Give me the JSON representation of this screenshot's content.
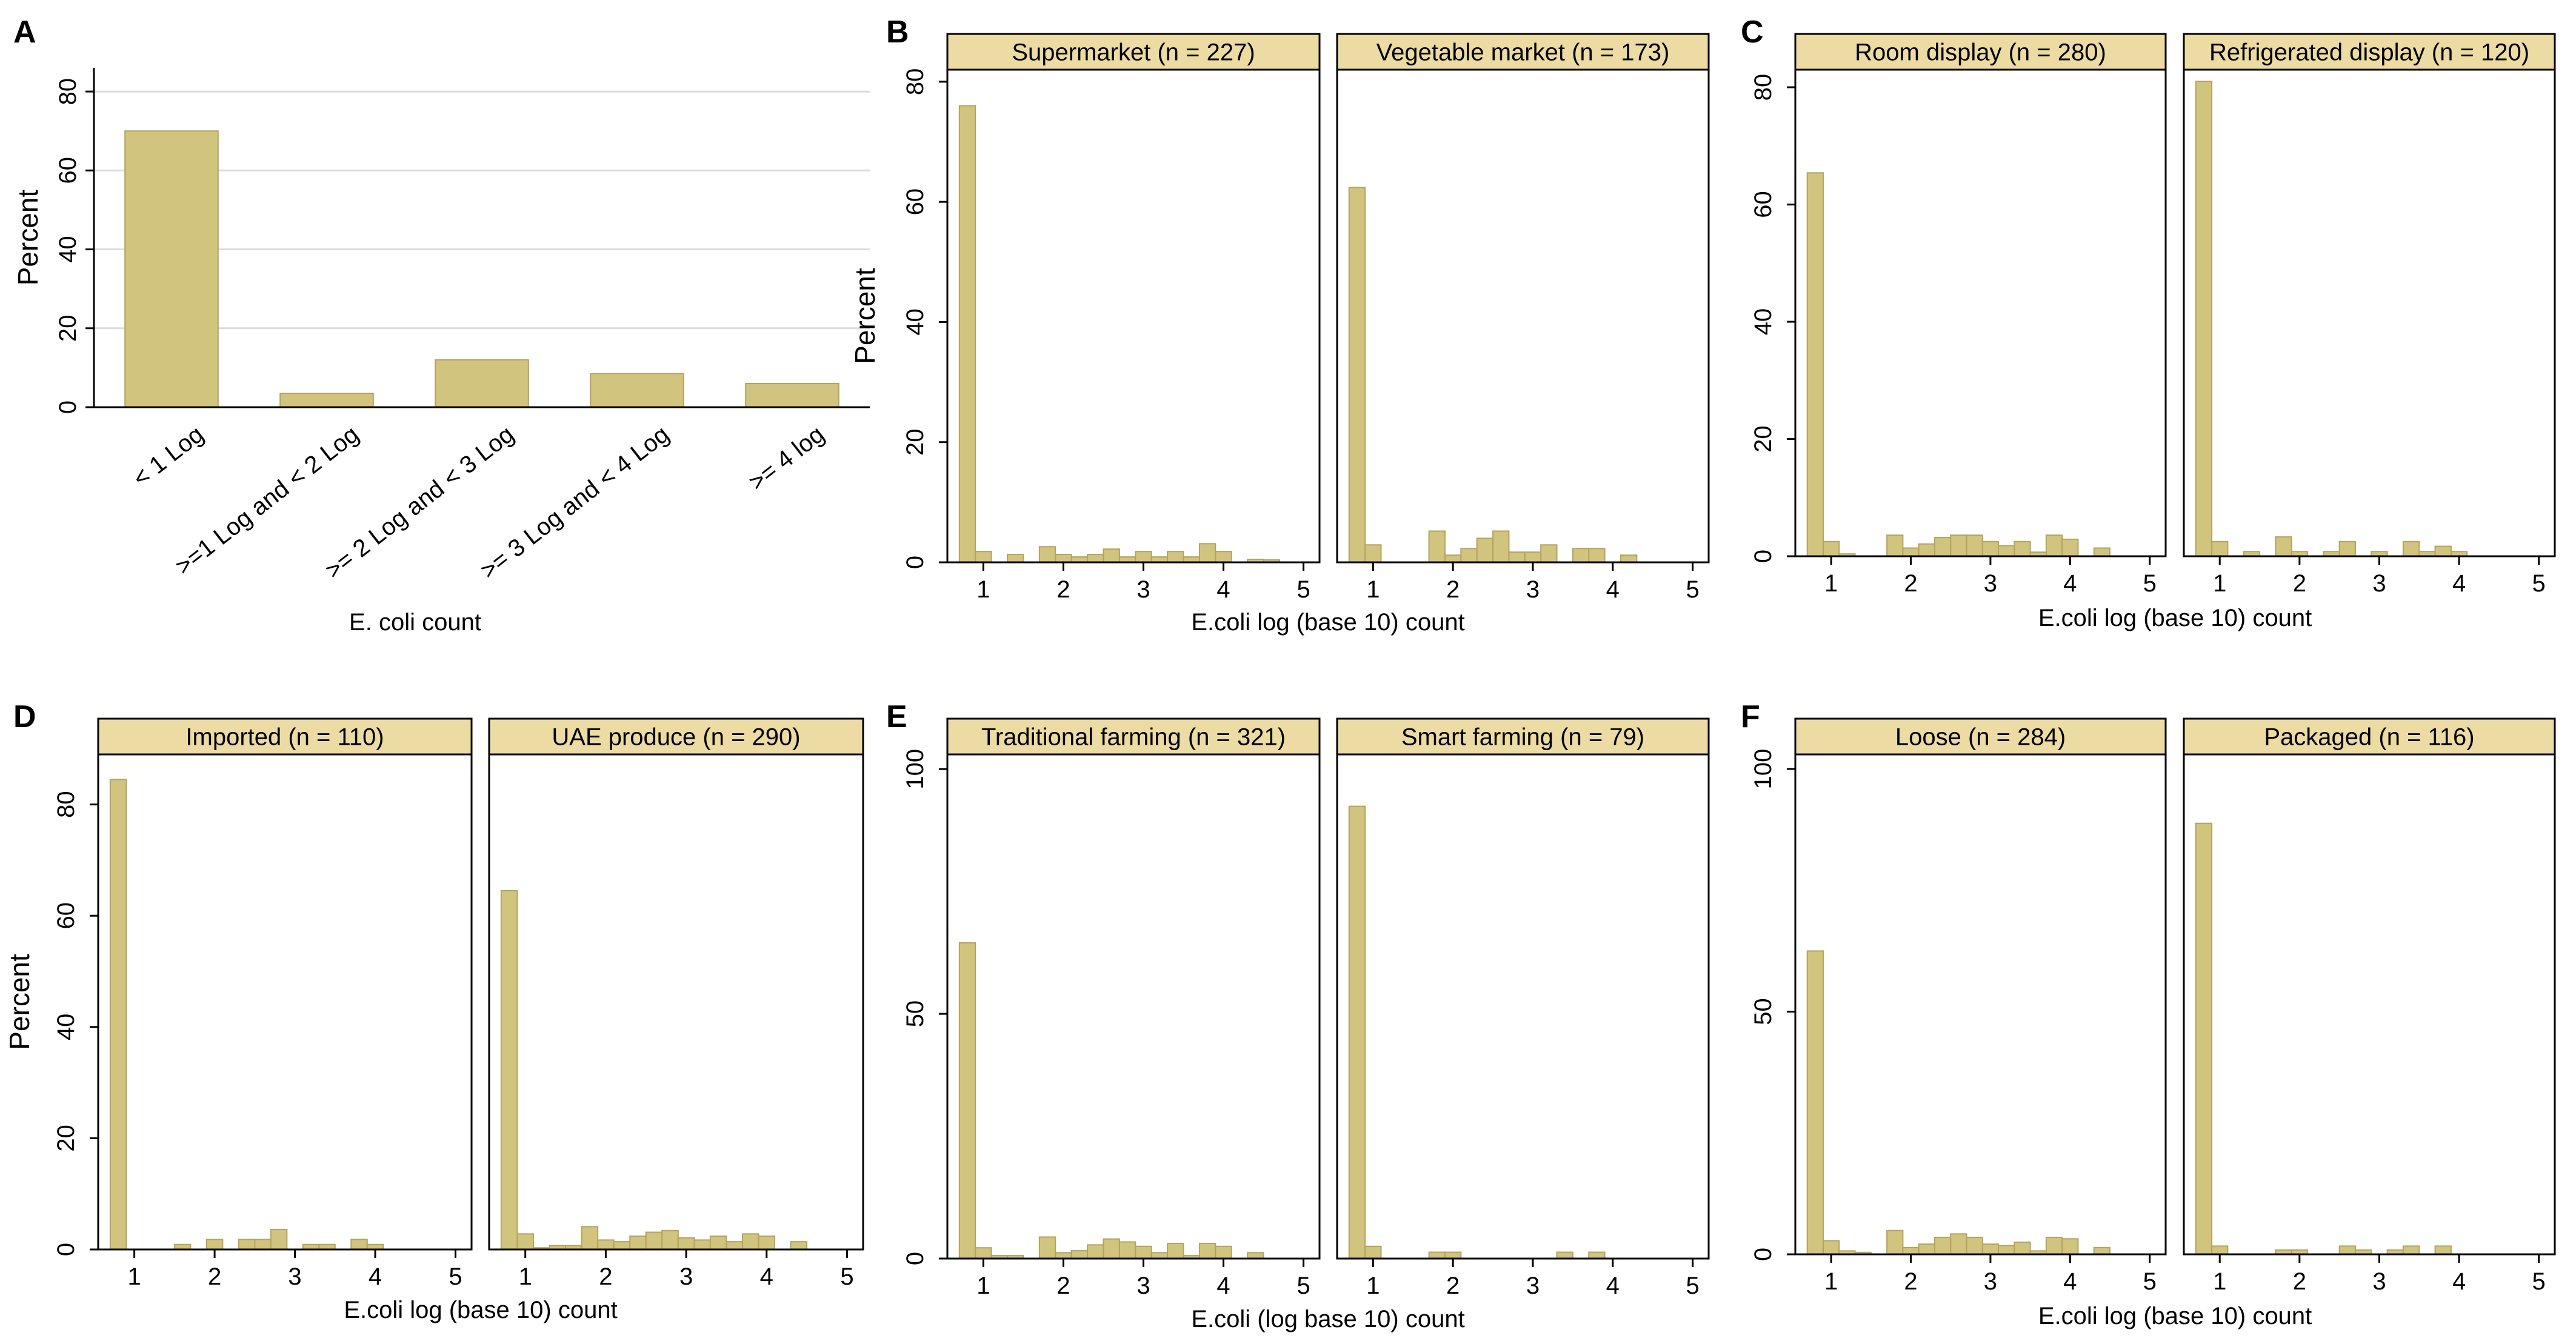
{
  "colors": {
    "bar": "#d1c47e",
    "bar_stroke": "#b4a35e",
    "strip": "#ecdba3",
    "grid": "#dcdcdc",
    "axis": "#000000"
  },
  "chart_data": [
    {
      "panel": "A",
      "type": "bar",
      "categories": [
        "< 1 Log",
        ">=1 Log and < 2 Log",
        ">= 2 Log and < 3 Log",
        ">= 3 Log and < 4 Log",
        ">= 4 log"
      ],
      "values": [
        70,
        3.5,
        12,
        8.5,
        6
      ],
      "xlabel": "E. coli count",
      "ylabel": "Percent",
      "yticks": [
        0,
        20,
        40,
        60,
        80
      ],
      "ylim": [
        0,
        86
      ],
      "grid": true
    },
    {
      "panel": "B",
      "type": "histogram",
      "xlabel": "E.coli log (base 10) count",
      "ylabel": "Percent",
      "xticks": [
        1,
        2,
        3,
        4,
        5
      ],
      "xlim": [
        0.55,
        5.2
      ],
      "yticks": [
        0,
        20,
        40,
        60,
        80
      ],
      "ylim": [
        0,
        82
      ],
      "bin_start": 0.7,
      "bin_width": 0.2,
      "subplots": [
        {
          "title": "Supermarket (n = 227)",
          "values": [
            76,
            1.8,
            0,
            1.3,
            0,
            2.6,
            1.3,
            0.9,
            1.3,
            2.2,
            0.9,
            1.8,
            0.9,
            1.8,
            0.9,
            3.1,
            1.8,
            0,
            0.5,
            0.4
          ]
        },
        {
          "title": "Vegetable market (n = 173)",
          "values": [
            62.4,
            2.9,
            0,
            0,
            0,
            5.2,
            1.2,
            2.3,
            4,
            5.2,
            1.7,
            1.7,
            2.9,
            0,
            2.3,
            2.3,
            0,
            1.2,
            0,
            0
          ]
        }
      ]
    },
    {
      "panel": "C",
      "type": "histogram",
      "xlabel": "E.coli log (base 10) count",
      "ylabel": "",
      "xticks": [
        1,
        2,
        3,
        4,
        5
      ],
      "xlim": [
        0.55,
        5.2
      ],
      "yticks": [
        0,
        20,
        40,
        60,
        80
      ],
      "ylim": [
        0,
        83
      ],
      "bin_start": 0.7,
      "bin_width": 0.2,
      "subplots": [
        {
          "title": "Room display (n = 280)",
          "values": [
            65.4,
            2.5,
            0.4,
            0,
            0,
            3.6,
            1.4,
            2.1,
            3.2,
            3.6,
            3.6,
            2.5,
            1.8,
            2.5,
            0.7,
            3.6,
            2.9,
            0,
            1.4,
            0
          ]
        },
        {
          "title": "Refrigerated display (n = 120)",
          "values": [
            81,
            2.5,
            0,
            0.8,
            0,
            3.3,
            0.8,
            0,
            0.8,
            2.5,
            0,
            0.8,
            0,
            2.5,
            0.8,
            1.7,
            0.8,
            0,
            0,
            0
          ]
        }
      ]
    },
    {
      "panel": "D",
      "type": "histogram",
      "xlabel": "E.coli log (base 10) count",
      "ylabel": "Percent",
      "xticks": [
        1,
        2,
        3,
        4,
        5
      ],
      "xlim": [
        0.55,
        5.2
      ],
      "yticks": [
        0,
        20,
        40,
        60,
        80
      ],
      "ylim": [
        0,
        89
      ],
      "bin_start": 0.7,
      "bin_width": 0.2,
      "subplots": [
        {
          "title": "Imported (n = 110)",
          "values": [
            84.5,
            0,
            0,
            0,
            0.9,
            0,
            1.8,
            0,
            1.8,
            1.8,
            3.6,
            0,
            0.9,
            0.9,
            0,
            1.8,
            0.9,
            0,
            0,
            0
          ]
        },
        {
          "title": "UAE produce (n = 290)",
          "values": [
            64.5,
            2.8,
            0.3,
            0.7,
            0.7,
            4.1,
            1.7,
            1.4,
            2.4,
            3.1,
            3.4,
            2.1,
            1.7,
            2.4,
            1.4,
            2.8,
            2.4,
            0,
            1.4,
            0
          ]
        }
      ]
    },
    {
      "panel": "E",
      "type": "histogram",
      "xlabel": "E.coli (log base 10) count",
      "ylabel": "",
      "xticks": [
        1,
        2,
        3,
        4,
        5
      ],
      "xlim": [
        0.55,
        5.2
      ],
      "yticks": [
        0,
        50,
        100
      ],
      "ylim": [
        0,
        103
      ],
      "bin_start": 0.7,
      "bin_width": 0.2,
      "subplots": [
        {
          "title": "Traditional farming (n = 321)",
          "values": [
            64.5,
            2.2,
            0.6,
            0.6,
            0,
            4.4,
            1.2,
            1.6,
            2.8,
            4,
            3.4,
            2.5,
            1.2,
            3.1,
            0.6,
            3.1,
            2.5,
            0,
            1.2,
            0
          ]
        },
        {
          "title": "Smart farming (n = 79)",
          "values": [
            92.4,
            2.5,
            0,
            0,
            0,
            1.3,
            1.3,
            0,
            0,
            0,
            0,
            0,
            0,
            1.3,
            0,
            1.3,
            0,
            0,
            0,
            0
          ]
        }
      ]
    },
    {
      "panel": "F",
      "type": "histogram",
      "xlabel": "E.coli log (base 10) count",
      "ylabel": "",
      "xticks": [
        1,
        2,
        3,
        4,
        5
      ],
      "xlim": [
        0.55,
        5.2
      ],
      "yticks": [
        0,
        50,
        100
      ],
      "ylim": [
        0,
        103
      ],
      "bin_start": 0.7,
      "bin_width": 0.2,
      "subplots": [
        {
          "title": "Loose (n = 284)",
          "values": [
            62.5,
            2.8,
            0.7,
            0.4,
            0,
            4.9,
            1.4,
            2.1,
            3.5,
            4.2,
            3.5,
            2.1,
            1.8,
            2.5,
            0.7,
            3.5,
            3.2,
            0,
            1.4,
            0
          ]
        },
        {
          "title": "Packaged (n = 116)",
          "values": [
            88.8,
            1.7,
            0,
            0,
            0,
            0.9,
            0.9,
            0,
            0,
            1.7,
            0.9,
            0,
            0.9,
            1.7,
            0,
            1.7,
            0,
            0,
            0,
            0
          ]
        }
      ]
    }
  ]
}
